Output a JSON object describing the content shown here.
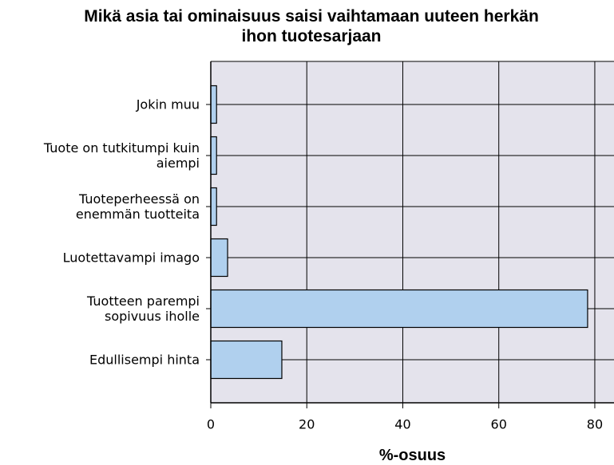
{
  "chart_data": {
    "type": "barh",
    "title": "Mikä asia tai ominaisuus saisi vaihtamaan uuteen herkän\nihon tuotesarjaan",
    "x_label": "%-osuus",
    "categories": [
      "Jokin muu",
      "Tuote on tutkitumpi kuin\naiempi",
      "Tuoteperheessä on\nenemmän tuotteita",
      "Luotettavampi imago",
      "Tuotteen parempi\nsopivuus iholle",
      "Edullisempi hinta"
    ],
    "values": [
      1.2,
      1.2,
      1.2,
      3.5,
      78.5,
      14.8
    ],
    "color": "#b0d0ee",
    "xlim": [
      0,
      84
    ],
    "xticks": [
      0,
      20,
      40,
      60,
      80
    ],
    "grid": true
  }
}
